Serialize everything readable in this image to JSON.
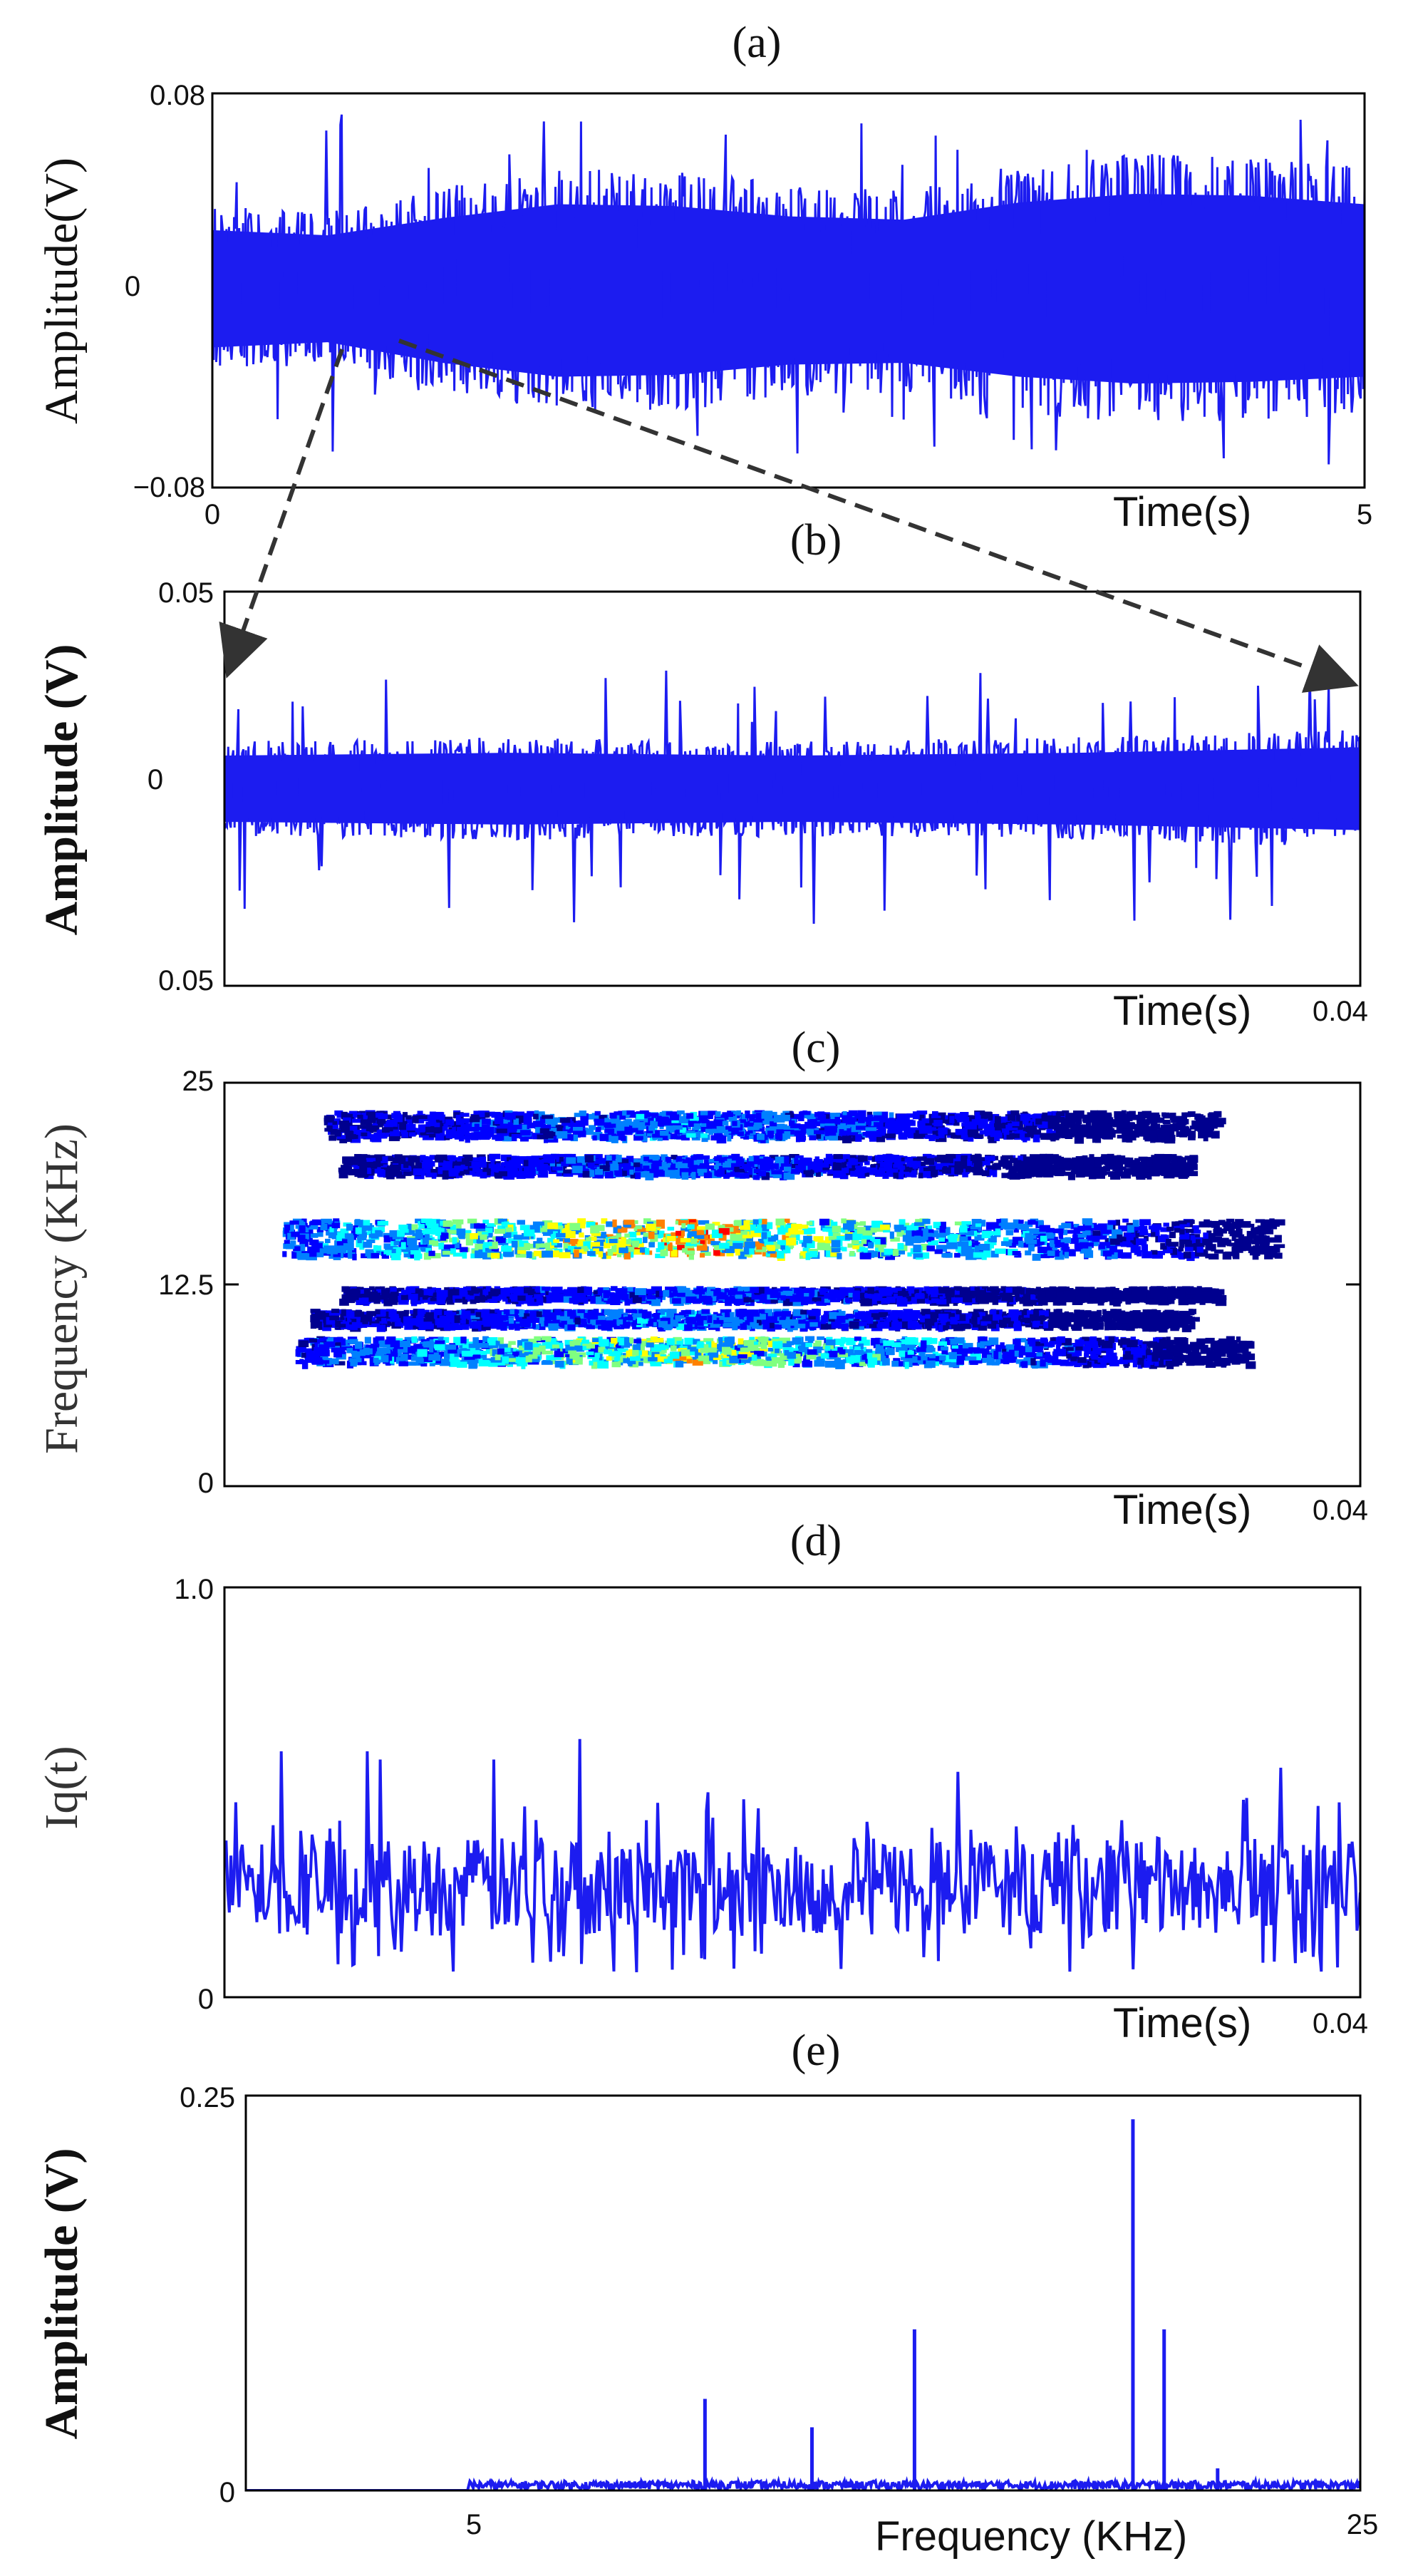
{
  "chart_data": [
    {
      "id": "a",
      "panel_label": "(a)",
      "type": "line",
      "ylabel": "Amplitude(V)",
      "xlabel": "Time(s)",
      "ylim": [
        -0.08,
        0.08
      ],
      "xlim": [
        0,
        5
      ],
      "yticks": [
        "0.08",
        "0",
        "−0.08"
      ],
      "xticks": [
        "0",
        "5"
      ],
      "series": [
        {
          "color": "#1c1cf0",
          "envelope": {
            "x": [
              0,
              0.5,
              1.0,
              1.5,
              2.0,
              2.5,
              3.0,
              3.5,
              4.0,
              4.5,
              5.0
            ],
            "upper": [
              0.035,
              0.032,
              0.042,
              0.05,
              0.049,
              0.043,
              0.041,
              0.051,
              0.056,
              0.055,
              0.05
            ],
            "lower": [
              -0.033,
              -0.03,
              -0.042,
              -0.05,
              -0.049,
              -0.043,
              -0.042,
              -0.05,
              -0.054,
              -0.053,
              -0.05
            ],
            "peak_max": 0.072,
            "peak_min": -0.072
          }
        }
      ]
    },
    {
      "id": "b",
      "panel_label": "(b)",
      "type": "line",
      "ylabel": "Amplitude (V)",
      "xlabel": "Time(s)",
      "ylim": [
        -0.05,
        0.05
      ],
      "xlim": [
        0,
        0.04
      ],
      "yticks": [
        "0.05",
        "0",
        "0.05"
      ],
      "xticks": [
        "0.04"
      ],
      "series": [
        {
          "color": "#1c1cf0",
          "envelope": {
            "x": [
              0,
              0.01,
              0.02,
              0.03,
              0.04
            ],
            "upper": [
              0.012,
              0.013,
              0.012,
              0.013,
              0.015
            ],
            "lower": [
              -0.012,
              -0.013,
              -0.012,
              -0.013,
              -0.015
            ],
            "peak_max": 0.03,
            "peak_min": -0.035
          }
        }
      ]
    },
    {
      "id": "c",
      "panel_label": "(c)",
      "type": "heatmap",
      "ylabel": "Frequency (KHz)",
      "xlabel": "Time(s)",
      "ylim": [
        0,
        25
      ],
      "xlim": [
        0,
        0.04
      ],
      "yticks": [
        "25",
        "12.5",
        "0"
      ],
      "xticks": [
        "0.04"
      ],
      "bands": [
        {
          "freq": 22.5,
          "width": 1.6,
          "t_start": 0.0035,
          "t_end": 0.035,
          "intensity": 0.35
        },
        {
          "freq": 20.0,
          "width": 1.2,
          "t_start": 0.004,
          "t_end": 0.034,
          "intensity": 0.3
        },
        {
          "freq": 15.5,
          "width": 2.2,
          "t_start": 0.002,
          "t_end": 0.037,
          "intensity": 0.8
        },
        {
          "freq": 12.0,
          "width": 0.8,
          "t_start": 0.004,
          "t_end": 0.035,
          "intensity": 0.3
        },
        {
          "freq": 10.5,
          "width": 1.0,
          "t_start": 0.003,
          "t_end": 0.034,
          "intensity": 0.35
        },
        {
          "freq": 8.5,
          "width": 1.6,
          "t_start": 0.0025,
          "t_end": 0.036,
          "intensity": 0.65
        }
      ],
      "colormap": [
        "#00008f",
        "#0000ff",
        "#0080ff",
        "#00ffff",
        "#80ff80",
        "#ffff00",
        "#ff8000",
        "#ff0000"
      ]
    },
    {
      "id": "d",
      "panel_label": "(d)",
      "type": "line",
      "ylabel": "Iq(t)",
      "xlabel": "Time(s)",
      "ylim": [
        0,
        1.0
      ],
      "xlim": [
        0,
        0.04
      ],
      "yticks": [
        "1.0",
        "0"
      ],
      "xticks": [
        "0.04"
      ],
      "series": [
        {
          "color": "#1c1cf0",
          "baseline": 0.27,
          "spread": 0.12,
          "peaks": [
            {
              "x": 0.002,
              "y": 0.6
            },
            {
              "x": 0.005,
              "y": 0.6
            },
            {
              "x": 0.0055,
              "y": 0.58
            },
            {
              "x": 0.0095,
              "y": 0.58
            },
            {
              "x": 0.0125,
              "y": 0.63
            },
            {
              "x": 0.017,
              "y": 0.5
            },
            {
              "x": 0.0258,
              "y": 0.55
            },
            {
              "x": 0.0372,
              "y": 0.56
            }
          ]
        }
      ]
    },
    {
      "id": "e",
      "panel_label": "(e)",
      "type": "line",
      "ylabel": "Amplitude (V)",
      "xlabel": "Frequency (KHz)",
      "ylim": [
        0,
        0.25
      ],
      "xlim": [
        0,
        25
      ],
      "yticks": [
        "0.25",
        "0"
      ],
      "xticks": [
        "5",
        "25"
      ],
      "series": [
        {
          "color": "#1c1cf0",
          "noise_start": 5,
          "noise_level": 0.004,
          "peaks": [
            {
              "x": 10.3,
              "y": 0.058
            },
            {
              "x": 12.7,
              "y": 0.04
            },
            {
              "x": 15.0,
              "y": 0.102
            },
            {
              "x": 19.9,
              "y": 0.235
            },
            {
              "x": 20.6,
              "y": 0.102
            },
            {
              "x": 21.8,
              "y": 0.014
            }
          ]
        }
      ]
    }
  ]
}
